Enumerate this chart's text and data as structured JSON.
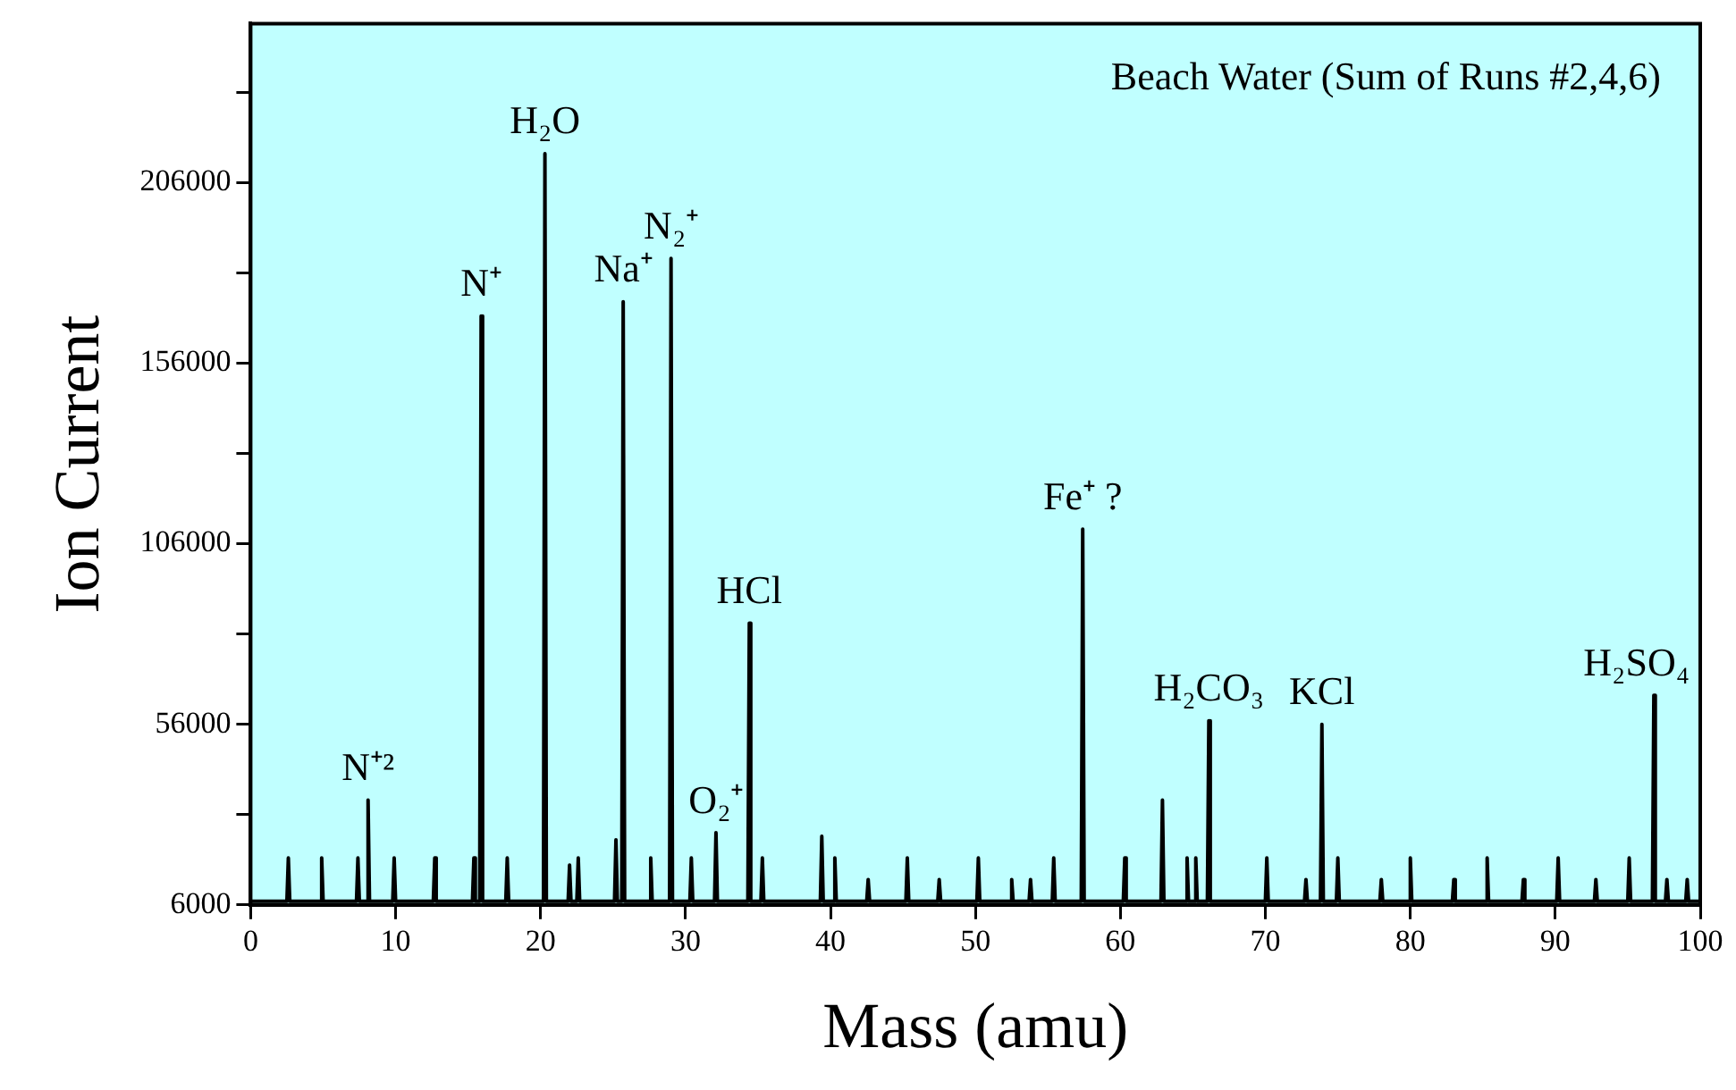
{
  "chart_data": {
    "type": "line",
    "xlabel": "Mass (amu)",
    "ylabel": "Ion Current",
    "xlim": [
      0,
      100
    ],
    "xticks": [
      0,
      10,
      20,
      30,
      40,
      50,
      60,
      70,
      80,
      90,
      100
    ],
    "ylim": [
      6000,
      250000
    ],
    "yticks": [
      6000,
      {
        "value": 31000,
        "label": null
      },
      56000,
      {
        "value": 81000,
        "label": null
      },
      106000,
      {
        "value": 131000,
        "label": null
      },
      156000,
      {
        "value": 181000,
        "label": null
      },
      206000,
      {
        "value": 231000,
        "label": null
      }
    ],
    "grid": false,
    "legend": false,
    "marker": "none",
    "line_style": "solid",
    "series": [
      {
        "color": "#000000",
        "x": [
          0,
          2.5,
          2.6,
          2.7,
          4.8,
          4.9,
          5.0,
          7.3,
          7.4,
          7.5,
          8.0,
          8.1,
          8.2,
          9.8,
          9.9,
          10.0,
          12.6,
          12.7,
          12.8,
          15.3,
          15.4,
          15.5,
          15.8,
          15.9,
          16.0,
          17.6,
          17.7,
          17.8,
          20.2,
          20.3,
          20.4,
          21.9,
          22.0,
          22.1,
          22.5,
          22.6,
          22.7,
          25.1,
          25.2,
          25.3,
          25.6,
          25.7,
          25.8,
          27.5,
          27.6,
          27.7,
          28.9,
          29.0,
          29.1,
          30.3,
          30.4,
          30.5,
          32.0,
          32.1,
          32.2,
          34.3,
          34.4,
          34.5,
          35.2,
          35.3,
          35.4,
          39.3,
          39.4,
          39.5,
          40.2,
          40.3,
          40.4,
          42.5,
          42.6,
          42.7,
          45.2,
          45.3,
          45.4,
          47.4,
          47.5,
          47.6,
          50.1,
          50.2,
          50.3,
          52.4,
          52.5,
          52.6,
          53.7,
          53.8,
          53.9,
          55.3,
          55.4,
          55.5,
          57.3,
          57.4,
          57.5,
          60.2,
          60.3,
          60.4,
          62.8,
          62.9,
          63.0,
          64.5,
          64.6,
          64.7,
          65.1,
          65.2,
          65.3,
          66.0,
          66.1,
          66.2,
          70.0,
          70.1,
          70.2,
          72.7,
          72.8,
          72.9,
          73.8,
          73.9,
          74.0,
          74.9,
          75.0,
          75.1,
          77.9,
          78.0,
          78.1,
          79.9,
          80.0,
          80.1,
          82.9,
          83.0,
          83.1,
          85.2,
          85.3,
          85.4,
          87.7,
          87.8,
          87.9,
          90.1,
          90.2,
          90.3,
          92.7,
          92.8,
          92.9,
          95.0,
          95.1,
          95.2,
          96.7,
          96.8,
          96.9,
          97.6,
          97.7,
          97.8,
          99.0,
          99.1,
          99.2,
          100
        ],
        "values": [
          7000,
          7000,
          19000,
          7000,
          7000,
          19000,
          7000,
          7000,
          19000,
          7000,
          7000,
          35000,
          7000,
          7000,
          19000,
          7000,
          7000,
          19000,
          7000,
          7000,
          19000,
          7000,
          7000,
          169000,
          7000,
          7000,
          19000,
          7000,
          7000,
          214000,
          7000,
          7000,
          17000,
          7000,
          7000,
          19000,
          7000,
          7000,
          24000,
          7000,
          7000,
          173000,
          7000,
          7000,
          19000,
          7000,
          7000,
          185000,
          7000,
          7000,
          19000,
          7000,
          7000,
          26000,
          7000,
          7000,
          84000,
          7000,
          7000,
          19000,
          7000,
          7000,
          25000,
          7000,
          7000,
          19000,
          7000,
          7000,
          13000,
          7000,
          7000,
          19000,
          7000,
          7000,
          13000,
          7000,
          7000,
          19000,
          7000,
          7000,
          13000,
          7000,
          7000,
          13000,
          7000,
          7000,
          19000,
          7000,
          7000,
          110000,
          7000,
          7000,
          19000,
          7000,
          7000,
          35000,
          7000,
          7000,
          19000,
          7000,
          7000,
          19000,
          7000,
          7000,
          57000,
          7000,
          7000,
          19000,
          7000,
          7000,
          13000,
          7000,
          7000,
          56000,
          7000,
          7000,
          19000,
          7000,
          7000,
          13000,
          7000,
          7000,
          19000,
          7000,
          7000,
          13000,
          7000,
          7000,
          19000,
          7000,
          7000,
          13000,
          7000,
          7000,
          19000,
          7000,
          7000,
          13000,
          7000,
          7000,
          19000,
          7000,
          7000,
          64000,
          7000,
          7000,
          13000,
          7000,
          7000,
          13000,
          7000,
          7000
        ]
      }
    ],
    "annotations": [
      "Beach Water (Sum of Runs #2,4,6)",
      {
        "text": "N⁺²",
        "x": 8.1,
        "y": 35000
      },
      {
        "text": "N⁺",
        "x": 15.9,
        "y": 169000
      },
      {
        "text": "H₂O",
        "x": 20.3,
        "y": 214000
      },
      {
        "text": "Na⁺",
        "x": 25.7,
        "y": 173000
      },
      {
        "text": "N₂⁺",
        "x": 29.0,
        "y": 185000
      },
      {
        "text": "O₂⁺",
        "x": 32.1,
        "y": 26000
      },
      {
        "text": "HCl",
        "x": 34.4,
        "y": 84000
      },
      {
        "text": "Fe⁺ ?",
        "x": 57.4,
        "y": 110000
      },
      {
        "text": "H₂CO₃",
        "x": 66.1,
        "y": 57000
      },
      {
        "text": "KCl",
        "x": 73.9,
        "y": 56000
      },
      {
        "text": "H₂SO₄",
        "x": 96.8,
        "y": 64000
      }
    ]
  }
}
